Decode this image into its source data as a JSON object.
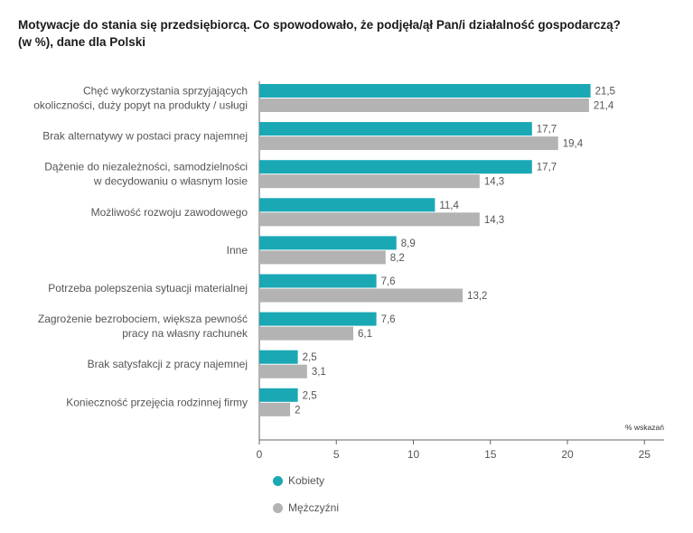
{
  "title_line1": "Motywacje do stania się przedsiębiorcą. Co spowodowało, że podjęła/ął Pan/i działalność gospodarczą?",
  "title_line2": "(w %), dane dla Polski",
  "colors": {
    "kobiety": "#1aa8b5",
    "mezczyzni": "#b3b3b3",
    "axis": "#666666",
    "text": "#555555"
  },
  "chart_data": {
    "type": "bar",
    "orientation": "horizontal",
    "categories": [
      [
        "Chęć wykorzystania sprzyjających",
        "okoliczności, duży popyt na produkty / usługi"
      ],
      [
        "Brak alternatywy w postaci pracy najemnej"
      ],
      [
        "Dążenie do niezależności, samodzielności",
        "w decydowaniu o własnym losie"
      ],
      [
        "Możliwość rozwoju zawodowego"
      ],
      [
        "Inne"
      ],
      [
        "Potrzeba polepszenia sytuacji materialnej"
      ],
      [
        "Zagrożenie bezrobociem, większa pewność",
        "pracy na własny rachunek"
      ],
      [
        "Brak satysfakcji z pracy najemnej"
      ],
      [
        "Konieczność przejęcia rodzinnej firmy"
      ]
    ],
    "series": [
      {
        "name": "Kobiety",
        "values": [
          21.5,
          17.7,
          17.7,
          11.4,
          8.9,
          7.6,
          7.6,
          2.5,
          2.5
        ],
        "labels": [
          "21,5",
          "17,7",
          "17,7",
          "11,4",
          "8,9",
          "7,6",
          "7,6",
          "2,5",
          "2,5"
        ]
      },
      {
        "name": "Mężczyźni",
        "values": [
          21.4,
          19.4,
          14.3,
          14.3,
          8.2,
          13.2,
          6.1,
          3.1,
          2
        ],
        "labels": [
          "21,4",
          "19,4",
          "14,3",
          "14,3",
          "8,2",
          "13,2",
          "6,1",
          "3,1",
          "2"
        ]
      }
    ],
    "xlim": [
      0,
      25
    ],
    "xticks": [
      0,
      5,
      10,
      15,
      20,
      25
    ],
    "xtick_labels": [
      "0",
      "5",
      "10",
      "15",
      "20",
      "25"
    ],
    "xlabel": "% wskazań",
    "grid": false,
    "legend_position": "bottom-left"
  }
}
